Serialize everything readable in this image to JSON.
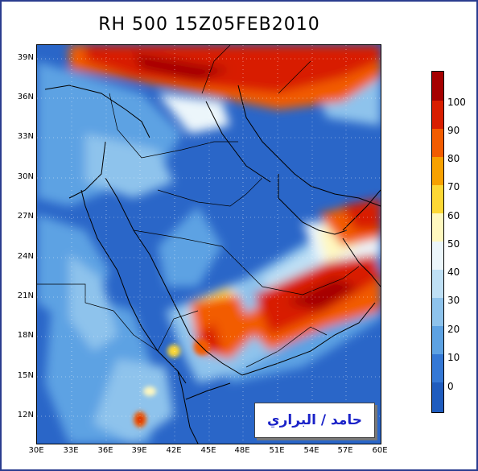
{
  "title": "RH 500  15Z05FEB2010",
  "lat_labels": [
    "39N",
    "36N",
    "33N",
    "30N",
    "27N",
    "24N",
    "21N",
    "18N",
    "15N",
    "12N"
  ],
  "lon_labels": [
    "30E",
    "33E",
    "36E",
    "39E",
    "42E",
    "45E",
    "48E",
    "51E",
    "54E",
    "57E",
    "60E"
  ],
  "colorbar": {
    "labels": [
      "100",
      "90",
      "80",
      "70",
      "60",
      "50",
      "40",
      "30",
      "20",
      "10",
      "0"
    ],
    "colors": [
      "#a50000",
      "#d81e00",
      "#f25c00",
      "#f7a100",
      "#fdd835",
      "#fff8bf",
      "#ecf6fb",
      "#bfe0f5",
      "#8ec3ec",
      "#5da2e3",
      "#3478d5",
      "#1f5cbe"
    ]
  },
  "signature": "حامد / البراري",
  "legend_colors": {
    "dry": "#2a66c8",
    "medium": "#8ec3ec",
    "moist": "#d81e00",
    "very_moist": "#a50000",
    "border": "#000000"
  }
}
